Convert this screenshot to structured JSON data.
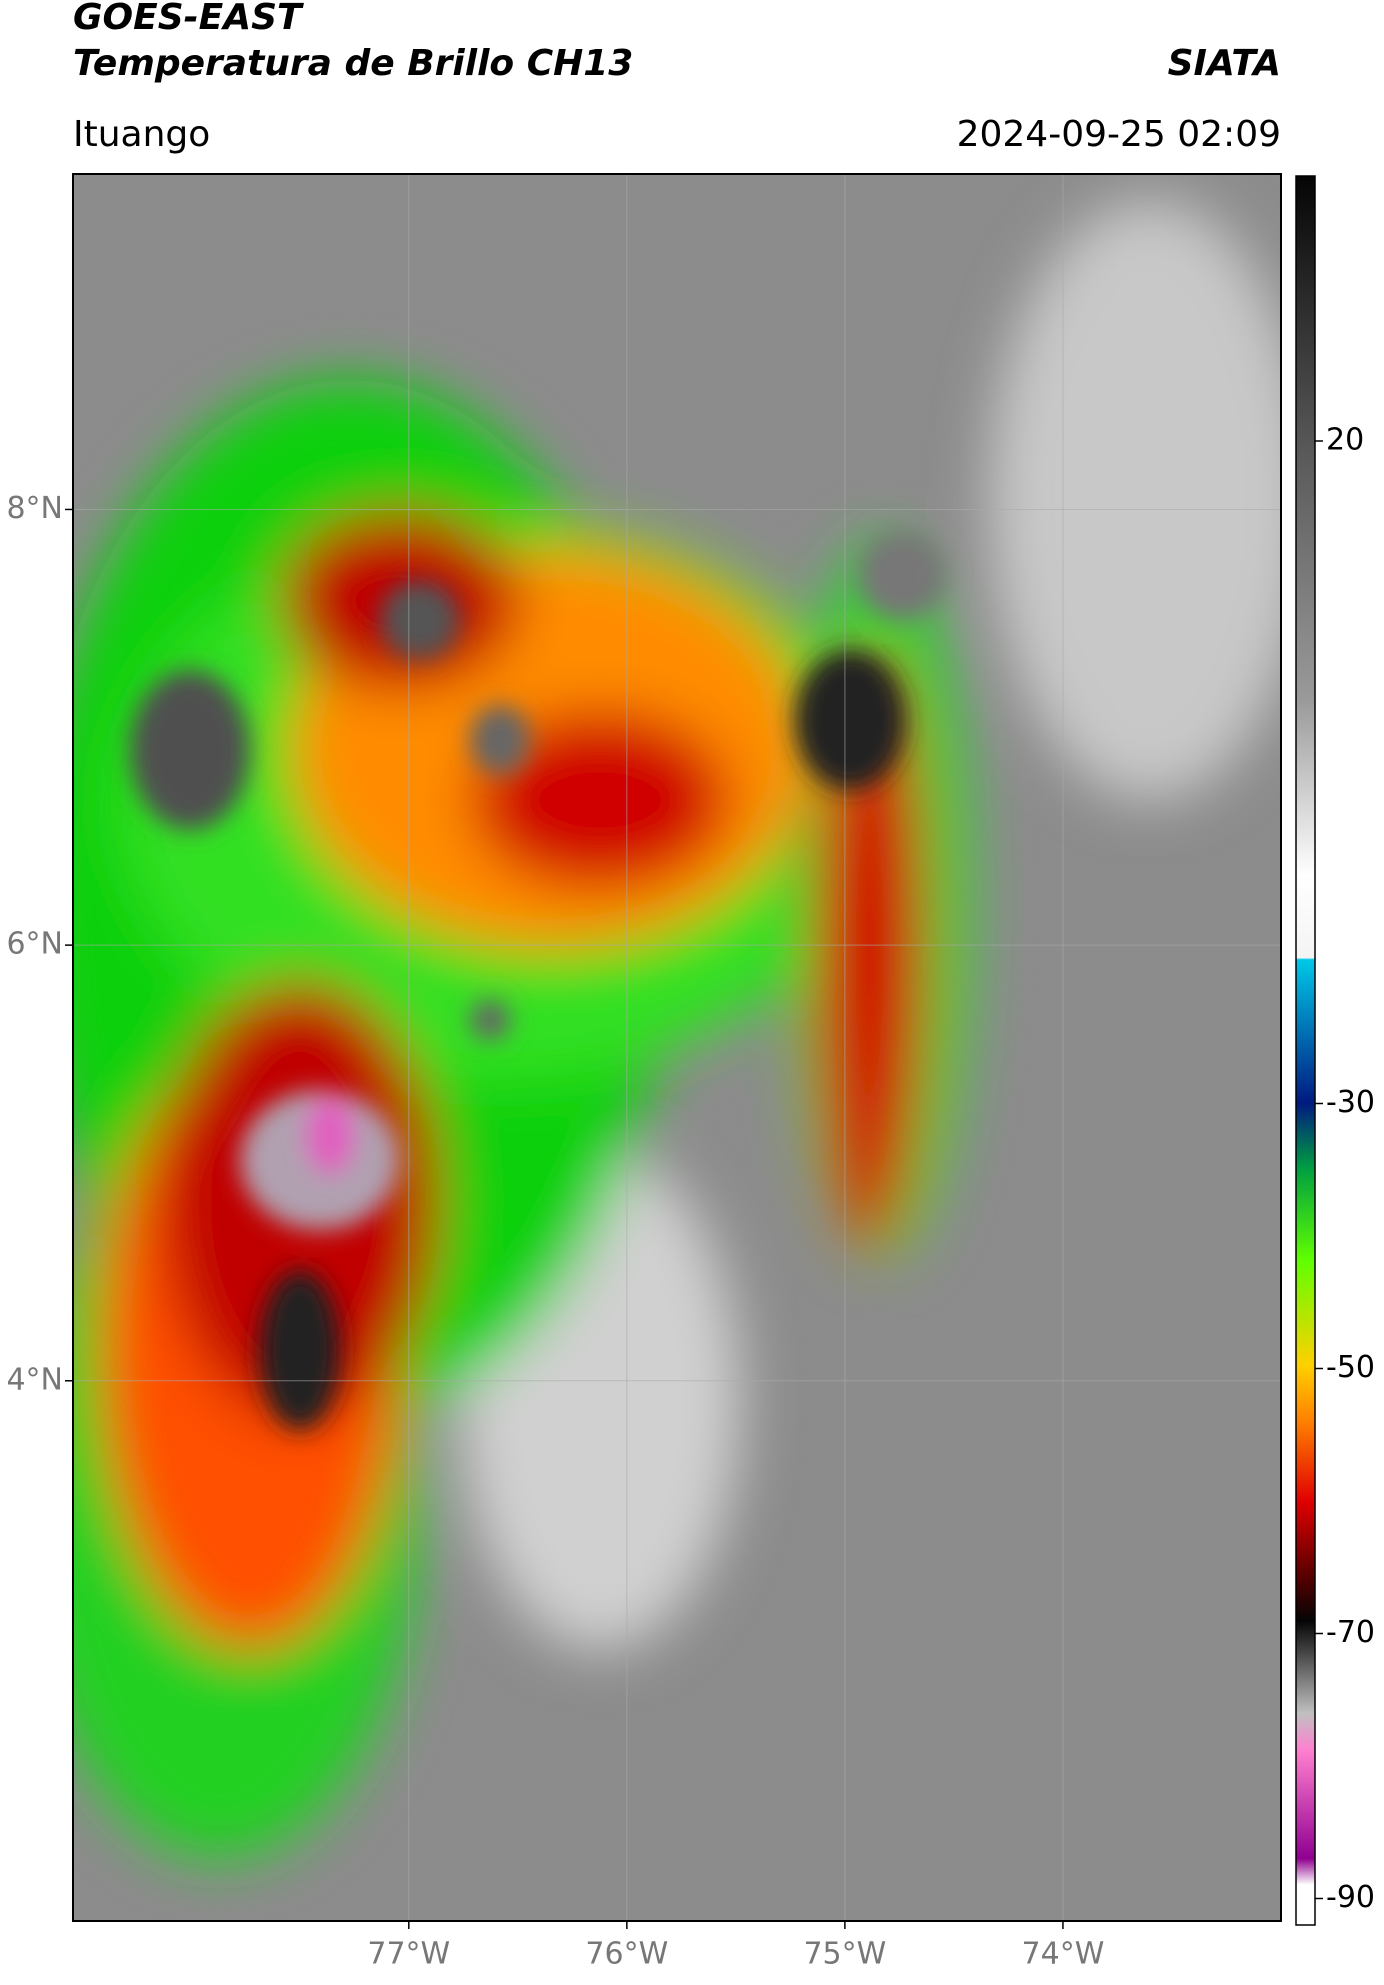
{
  "header": {
    "satellite": "GOES-EAST",
    "product": "Temperatura de Brillo CH13",
    "organization": "SIATA",
    "location": "Ituango",
    "timestamp": "2024-09-25 02:09"
  },
  "map": {
    "lat_range": [
      1.52,
      9.54
    ],
    "lon_range": [
      -78.54,
      -73.0
    ],
    "lat_ticks": [
      {
        "value": 8,
        "label": "8°N"
      },
      {
        "value": 6,
        "label": "6°N"
      },
      {
        "value": 4,
        "label": "4°N"
      }
    ],
    "lon_ticks": [
      {
        "value": -77,
        "label": "77°W"
      },
      {
        "value": -76,
        "label": "76°W"
      },
      {
        "value": -75,
        "label": "75°W"
      },
      {
        "value": -74,
        "label": "74°W"
      }
    ]
  },
  "colorbar": {
    "clim": [
      -92,
      40
    ],
    "ticks": [
      20,
      -30,
      -50,
      -70,
      -90
    ]
  }
}
